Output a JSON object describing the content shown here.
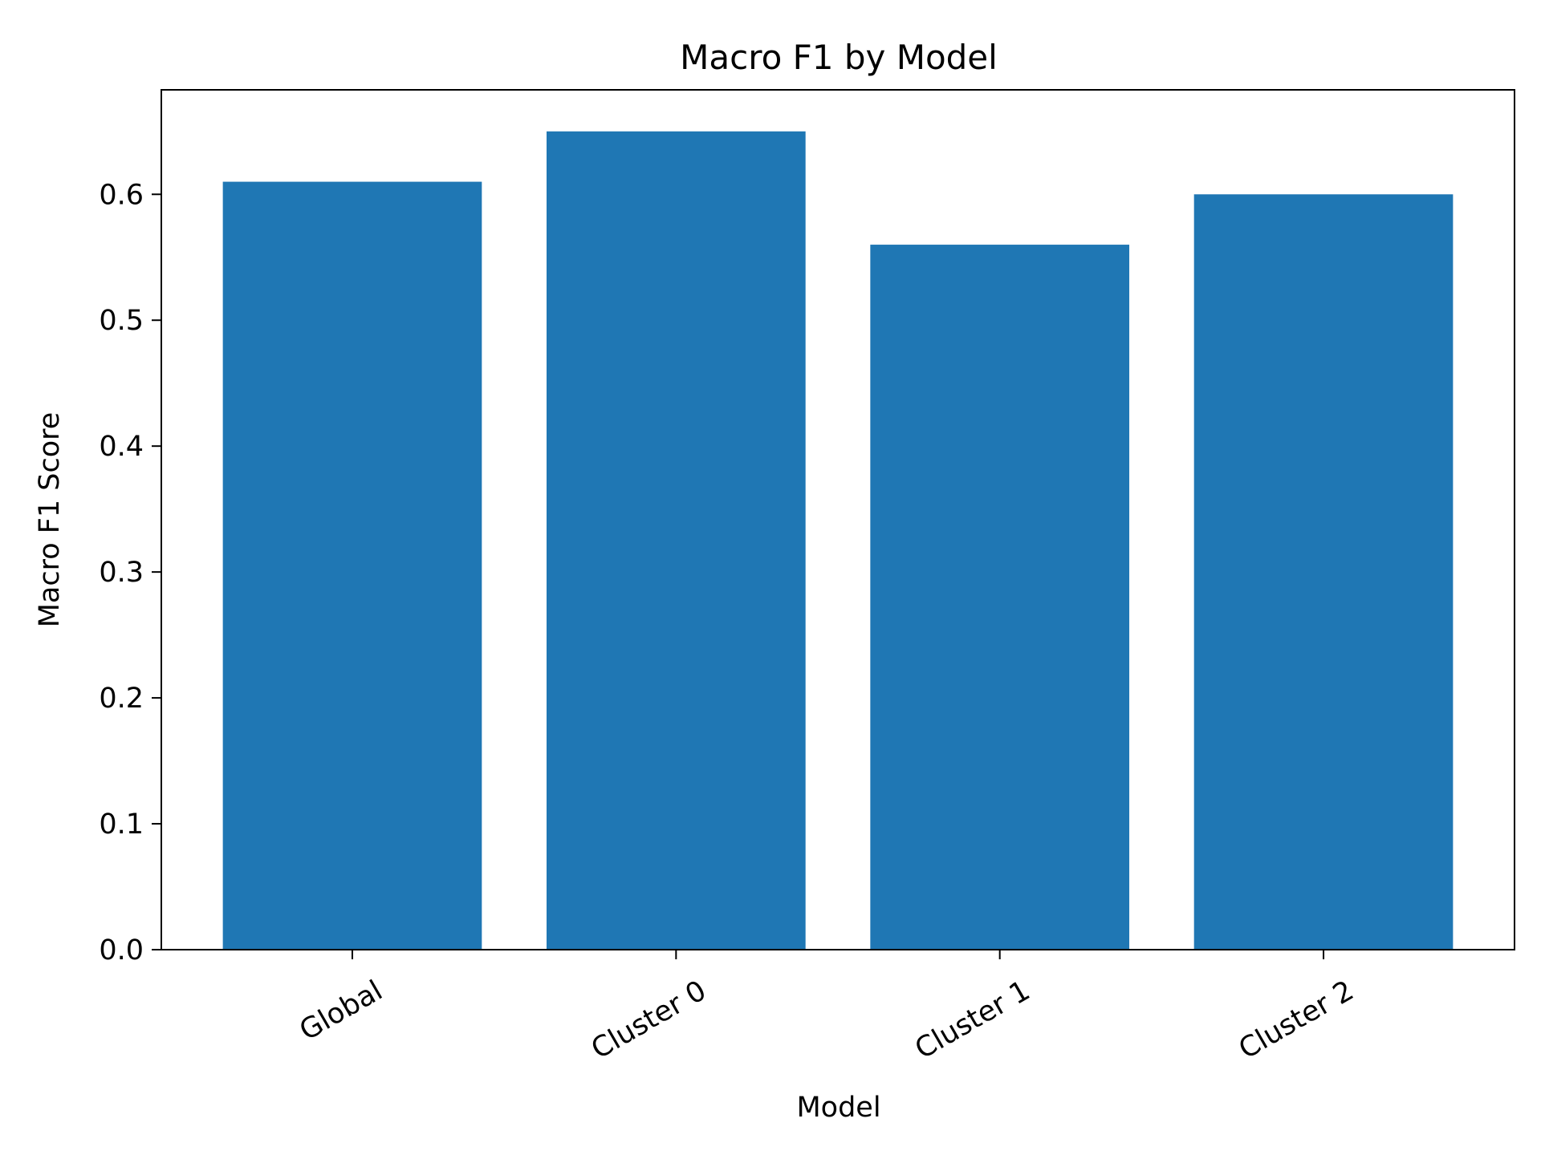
{
  "chart_data": {
    "type": "bar",
    "title": "Macro F1 by Model",
    "xlabel": "Model",
    "ylabel": "Macro F1 Score",
    "categories": [
      "Global",
      "Cluster 0",
      "Cluster 1",
      "Cluster 2"
    ],
    "values": [
      0.61,
      0.65,
      0.56,
      0.6
    ],
    "ylim": [
      0,
      0.683
    ],
    "yticks": [
      "0.0",
      "0.1",
      "0.2",
      "0.3",
      "0.4",
      "0.5",
      "0.6"
    ],
    "grid": false,
    "bar_color": "#1f77b4",
    "xtick_rotation_deg": 30
  }
}
